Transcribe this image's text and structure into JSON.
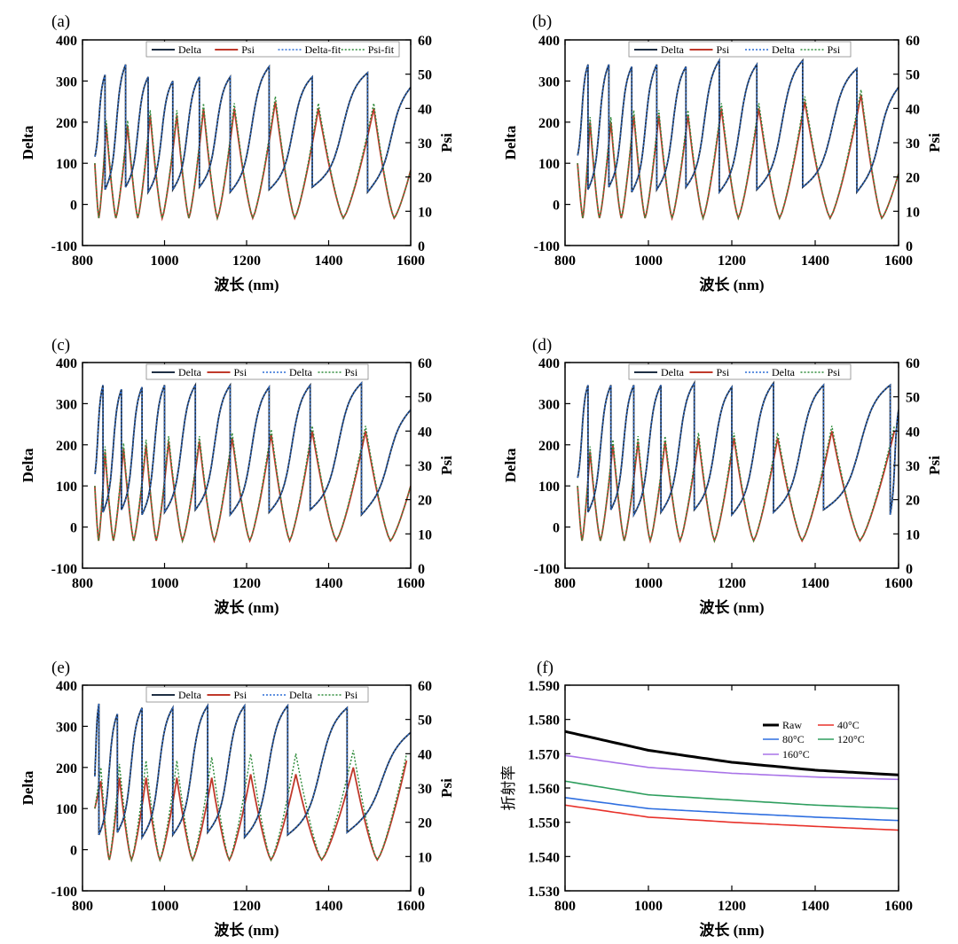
{
  "figure": {
    "panels": [
      "(a)",
      "(b)",
      "(c)",
      "(d)",
      "(e)",
      "(f)"
    ]
  },
  "chart_data": [
    {
      "panel": "(a)",
      "type": "line",
      "xlabel_cn": "波长",
      "xlabel_unit": "(nm)",
      "ylabel_left": "Delta",
      "ylabel_right": "Psi",
      "xlim": [
        800,
        1600
      ],
      "ylim_left": [
        -100,
        400
      ],
      "ylim_right": [
        0,
        60
      ],
      "x_ticks": [
        "800",
        "1000",
        "1200",
        "1400",
        "1600"
      ],
      "y_left_ticks": [
        "-100",
        "0",
        "100",
        "200",
        "300",
        "400"
      ],
      "y_right_ticks": [
        "0",
        "10",
        "20",
        "30",
        "40",
        "50",
        "60"
      ],
      "legend": [
        "Delta",
        "Psi",
        "Delta-fit",
        "Psi-fit"
      ],
      "x_range": [
        830,
        1600
      ],
      "delta_peaks": [
        855,
        905,
        960,
        1020,
        1085,
        1160,
        1255,
        1360,
        1495
      ],
      "delta_peak_values": [
        315,
        340,
        310,
        300,
        310,
        310,
        335,
        310,
        320
      ],
      "psi_peaks": [
        858,
        910,
        965,
        1030,
        1095,
        1170,
        1270,
        1375,
        1510
      ],
      "psi_peak_values": [
        35,
        35,
        38,
        38,
        40,
        40,
        42,
        40,
        40
      ],
      "psi_min": 8,
      "psi_end": 22
    },
    {
      "panel": "(b)",
      "type": "line",
      "xlabel_cn": "波长",
      "xlabel_unit": "(nm)",
      "ylabel_left": "Delta",
      "ylabel_right": "Psi",
      "xlim": [
        800,
        1600
      ],
      "ylim_left": [
        -100,
        400
      ],
      "ylim_right": [
        0,
        60
      ],
      "x_ticks": [
        "800",
        "1000",
        "1200",
        "1400",
        "1600"
      ],
      "y_left_ticks": [
        "-100",
        "0",
        "100",
        "200",
        "300",
        "400"
      ],
      "y_right_ticks": [
        "0",
        "10",
        "20",
        "30",
        "40",
        "50",
        "60"
      ],
      "legend": [
        "Delta",
        "Psi",
        "Delta",
        "Psi"
      ],
      "x_range": [
        830,
        1600
      ],
      "delta_peaks": [
        855,
        905,
        960,
        1020,
        1090,
        1170,
        1260,
        1370,
        1500
      ],
      "delta_peak_values": [
        340,
        340,
        335,
        340,
        335,
        350,
        340,
        350,
        330
      ],
      "psi_peaks": [
        860,
        910,
        965,
        1025,
        1095,
        1175,
        1265,
        1375,
        1510
      ],
      "psi_peak_values": [
        36,
        36,
        38,
        38,
        38,
        40,
        40,
        42,
        44
      ],
      "psi_min": 8,
      "psi_end": 21
    },
    {
      "panel": "(c)",
      "type": "line",
      "xlabel_cn": "波长",
      "xlabel_unit": "(nm)",
      "ylabel_left": "Delta",
      "ylabel_right": "Psi",
      "xlim": [
        800,
        1600
      ],
      "ylim_left": [
        -100,
        400
      ],
      "ylim_right": [
        0,
        60
      ],
      "x_ticks": [
        "800",
        "1000",
        "1200",
        "1400",
        "1600"
      ],
      "y_left_ticks": [
        "-100",
        "0",
        "100",
        "200",
        "300",
        "400"
      ],
      "y_right_ticks": [
        "0",
        "10",
        "20",
        "30",
        "40",
        "50",
        "60"
      ],
      "legend": [
        "Delta",
        "Psi",
        "Delta",
        "Psi"
      ],
      "x_range": [
        830,
        1600
      ],
      "delta_peaks": [
        850,
        895,
        945,
        1000,
        1075,
        1160,
        1255,
        1355,
        1480
      ],
      "delta_peak_values": [
        345,
        335,
        340,
        345,
        345,
        345,
        340,
        345,
        350
      ],
      "psi_peaks": [
        855,
        900,
        955,
        1010,
        1085,
        1165,
        1260,
        1360,
        1490
      ],
      "psi_peak_values": [
        34,
        35,
        36,
        37,
        37,
        38,
        39,
        40,
        40
      ],
      "psi_min": 8,
      "psi_end": 24
    },
    {
      "panel": "(d)",
      "type": "line",
      "xlabel_cn": "波长",
      "xlabel_unit": "(nm)",
      "ylabel_left": "Delta",
      "ylabel_right": "Psi",
      "xlim": [
        800,
        1600
      ],
      "ylim_left": [
        -100,
        400
      ],
      "ylim_right": [
        0,
        60
      ],
      "x_ticks": [
        "800",
        "1000",
        "1200",
        "1400",
        "1600"
      ],
      "y_left_ticks": [
        "-100",
        "0",
        "100",
        "200",
        "300",
        "400"
      ],
      "y_right_ticks": [
        "0",
        "10",
        "20",
        "30",
        "40",
        "50",
        "60"
      ],
      "legend": [
        "Delta",
        "Psi",
        "Delta",
        "Psi"
      ],
      "x_range": [
        830,
        1600
      ],
      "delta_peaks": [
        855,
        910,
        965,
        1030,
        1110,
        1200,
        1300,
        1420,
        1580
      ],
      "delta_peak_values": [
        345,
        345,
        345,
        345,
        350,
        340,
        350,
        345,
        345
      ],
      "psi_peaks": [
        860,
        915,
        975,
        1040,
        1120,
        1205,
        1310,
        1440,
        1590
      ],
      "psi_peak_values": [
        34,
        36,
        37,
        37,
        38,
        38,
        38,
        40,
        40
      ],
      "psi_min": 8,
      "psi_end": 38
    },
    {
      "panel": "(e)",
      "type": "line",
      "xlabel_cn": "波长",
      "xlabel_unit": "(nm)",
      "ylabel_left": "Delta",
      "ylabel_right": "Psi",
      "xlim": [
        800,
        1600
      ],
      "ylim_left": [
        -100,
        400
      ],
      "ylim_right": [
        0,
        60
      ],
      "x_ticks": [
        "800",
        "1000",
        "1200",
        "1400",
        "1600"
      ],
      "y_left_ticks": [
        "-100",
        "0",
        "100",
        "200",
        "300",
        "400"
      ],
      "y_right_ticks": [
        "0",
        "10",
        "20",
        "30",
        "40",
        "50",
        "60"
      ],
      "legend": [
        "Delta",
        "Psi",
        "Delta",
        "Psi"
      ],
      "x_range": [
        830,
        1600
      ],
      "delta_peaks": [
        840,
        885,
        945,
        1020,
        1105,
        1195,
        1300,
        1445
      ],
      "delta_peak_values": [
        355,
        330,
        345,
        345,
        350,
        350,
        350,
        345
      ],
      "psi_peaks": [
        845,
        890,
        955,
        1030,
        1115,
        1210,
        1320,
        1460,
        1590
      ],
      "psi_peak_values": [
        32,
        33,
        33,
        33,
        33,
        34,
        34,
        36,
        38
      ],
      "psi_min": 9,
      "psi_end": 36,
      "psifit_peak_values": [
        36,
        37,
        38,
        38,
        39,
        40,
        40,
        41,
        40
      ]
    },
    {
      "panel": "(f)",
      "type": "line",
      "xlabel_cn": "波长",
      "xlabel_unit": "(nm)",
      "ylabel": "折射率",
      "xlim": [
        800,
        1600
      ],
      "ylim": [
        1.53,
        1.59
      ],
      "x_ticks": [
        "800",
        "1000",
        "1200",
        "1400",
        "1600"
      ],
      "y_ticks": [
        "1.530",
        "1.540",
        "1.550",
        "1.560",
        "1.570",
        "1.580",
        "1.590"
      ],
      "x": [
        800,
        1000,
        1200,
        1400,
        1600
      ],
      "series": [
        {
          "name": "Raw",
          "color": "#000000",
          "values": [
            1.5765,
            1.571,
            1.5675,
            1.5652,
            1.5638
          ]
        },
        {
          "name": "40°C",
          "color": "#e8322b",
          "values": [
            1.555,
            1.5515,
            1.55,
            1.5488,
            1.5477
          ]
        },
        {
          "name": "80°C",
          "color": "#2f6fe0",
          "values": [
            1.5572,
            1.554,
            1.5527,
            1.5515,
            1.5505
          ]
        },
        {
          "name": "120°C",
          "color": "#2e9e5e",
          "values": [
            1.562,
            1.558,
            1.5565,
            1.555,
            1.554
          ]
        },
        {
          "name": "160°C",
          "color": "#a974e8",
          "values": [
            1.5695,
            1.566,
            1.5643,
            1.5632,
            1.5625
          ]
        }
      ]
    }
  ]
}
